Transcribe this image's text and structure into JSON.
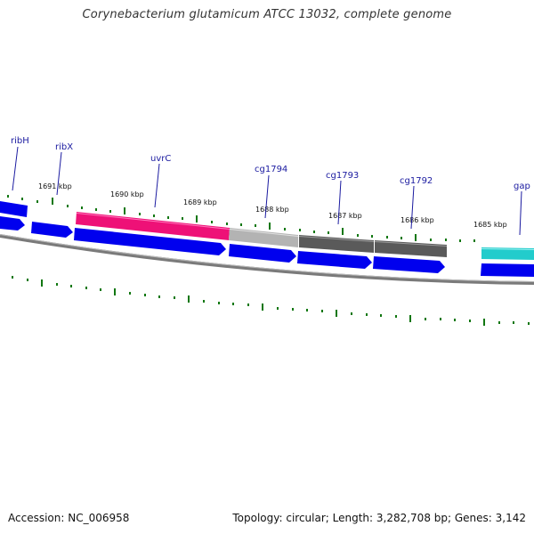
{
  "header": {
    "title": "Corynebacterium glutamicum ATCC 13032, complete genome"
  },
  "footer": {
    "accession": "Accession: NC_006958",
    "summary": "Topology: circular; Length: 3,282,708 bp; Genes: 3,142"
  },
  "colors": {
    "forward_gene": "#0000ee",
    "uvrC": "#ee1177",
    "cg1794": "#b0b0b0",
    "cg1793": "#5a5a5a",
    "cg1792": "#5a5a5a",
    "gap": "#22cccc",
    "backbone": "#808080",
    "tick": "#117711",
    "label": "#1a1aa0"
  },
  "diagram": {
    "kbp_labels": [
      "1691 kbp",
      "1690 kbp",
      "1689 kbp",
      "1688 kbp",
      "1687 kbp",
      "1686 kbp",
      "1685 kbp"
    ],
    "genes": [
      {
        "name": "ribH"
      },
      {
        "name": "ribX"
      },
      {
        "name": "uvrC"
      },
      {
        "name": "cg1794"
      },
      {
        "name": "cg1793"
      },
      {
        "name": "cg1792"
      },
      {
        "name": "gap"
      }
    ]
  }
}
